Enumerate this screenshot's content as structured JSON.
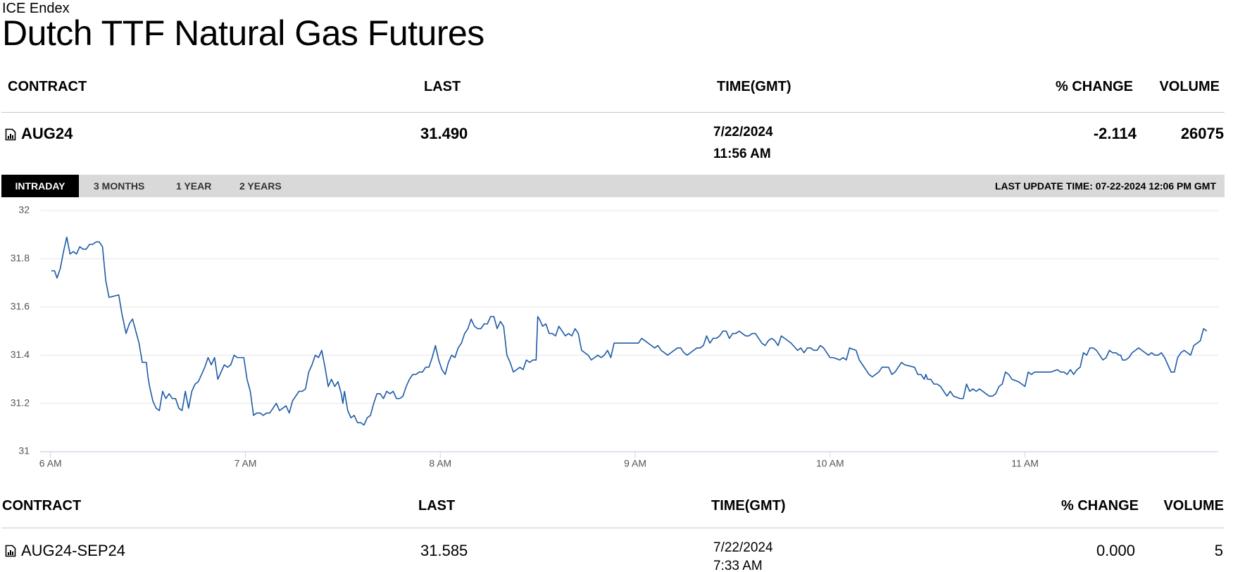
{
  "header": {
    "source": "ICE Endex",
    "title": "Dutch TTF Natural Gas Futures"
  },
  "table": {
    "columns": [
      "CONTRACT",
      "LAST",
      "TIME(GMT)",
      "% CHANGE",
      "VOLUME"
    ],
    "rows": [
      {
        "contract": "AUG24",
        "last": "31.490",
        "date": "7/22/2024",
        "time": "11:56 AM",
        "change": "-2.114",
        "volume": "26075"
      }
    ]
  },
  "tabs": [
    "INTRADAY",
    "3 MONTHS",
    "1 YEAR",
    "2 YEARS"
  ],
  "last_update": "LAST UPDATE TIME: 07-22-2024 12:06 PM GMT",
  "chart_data": {
    "type": "line",
    "color": "#1d5aa6",
    "grid": true,
    "xlim": [
      356.8,
      719.5
    ],
    "ylim": [
      31,
      32
    ],
    "yticks": [
      31,
      31.2,
      31.4,
      31.6,
      31.8,
      32
    ],
    "xticks": [
      {
        "value": 360,
        "label": "6 AM"
      },
      {
        "value": 420,
        "label": "7 AM"
      },
      {
        "value": 480,
        "label": "8 AM"
      },
      {
        "value": 540,
        "label": "9 AM"
      },
      {
        "value": 600,
        "label": "10 AM"
      },
      {
        "value": 660,
        "label": "11 AM"
      }
    ],
    "x": [
      360.25,
      361.25,
      362,
      363,
      364,
      365,
      366,
      367,
      368,
      369,
      370,
      371,
      372,
      373,
      374,
      375,
      376,
      377,
      378,
      381,
      382,
      383.25,
      384.25,
      385.25,
      386.25,
      387.25,
      388.25,
      389.5,
      390,
      390.5,
      391.5,
      392.5,
      393.5,
      394.5,
      395.5,
      396.5,
      397.5,
      398.5,
      399.5,
      400.5,
      401.5,
      402.5,
      403.5,
      404.5,
      405.5,
      406.5,
      407.5,
      408.5,
      409.5,
      410.5,
      411.5,
      412.5,
      413.5,
      414.5,
      415.5,
      416.5,
      417.5,
      418.5,
      419.5,
      420.5,
      421.5,
      422.5,
      423.5,
      424.5,
      425.5,
      426.5,
      427.5,
      428.5,
      429.5,
      430.5,
      431.5,
      432.5,
      433.5,
      434.5,
      435.5,
      436.5,
      437.5,
      438.5,
      439.5,
      440.5,
      441.5,
      442.5,
      443.5,
      444.5,
      445.5,
      446.5,
      447.5,
      448.5,
      449.5,
      450,
      450.5,
      451.5,
      452.5,
      453.5,
      454.5,
      455.5,
      456.5,
      457.5,
      458.5,
      459.5,
      460.5,
      461.5,
      462.5,
      463.5,
      464.5,
      465.5,
      466.5,
      467.5,
      468.5,
      469.5,
      470.5,
      471.5,
      472.5,
      473.5,
      474.5,
      475.5,
      476.5,
      477.5,
      478.5,
      479.5,
      480.5,
      481.5,
      482.5,
      483.5,
      484.5,
      485.5,
      486.5,
      487.5,
      488.5,
      489.5,
      490.5,
      491.5,
      492.5,
      493.5,
      494.5,
      495.5,
      496.5,
      497.5,
      498.5,
      499.5,
      500.5,
      501.5,
      502.5,
      503.5,
      504.5,
      505.5,
      506.5,
      507.5,
      508.5,
      509.5,
      510,
      510.5,
      511.5,
      512.5,
      513.5,
      514.5,
      515.5,
      516.5,
      517.5,
      518.5,
      519.5,
      520.5,
      521.5,
      522.5,
      523.5,
      524.5,
      525.5,
      526.5,
      527.5,
      528.5,
      529.5,
      530.5,
      531.5,
      532.5,
      533.5,
      534.5,
      541,
      542,
      543,
      544,
      545,
      546,
      547,
      548,
      549,
      550,
      551,
      553,
      554,
      555,
      556,
      557,
      558,
      559,
      560,
      561,
      562,
      563,
      564,
      565,
      566,
      567,
      568,
      569,
      569.5,
      570,
      571,
      572,
      573,
      574,
      575,
      576,
      577,
      578,
      579,
      580,
      581,
      582,
      583,
      584,
      585,
      586,
      588,
      590,
      591,
      592,
      593,
      594,
      595,
      596,
      597,
      598,
      599,
      600,
      601,
      603,
      604,
      605,
      606,
      608,
      609,
      610,
      611,
      612,
      613,
      615,
      616,
      618,
      619,
      620,
      621,
      622,
      623,
      626,
      627,
      628,
      629,
      629.5,
      630,
      631,
      632,
      633,
      634,
      635,
      636,
      637,
      638,
      640,
      641,
      642,
      643,
      644,
      645,
      646,
      647,
      648,
      649,
      650,
      651,
      652,
      653,
      654,
      655,
      656,
      658,
      659,
      660,
      661,
      662,
      663,
      668,
      670,
      671,
      672,
      673,
      674,
      675,
      676,
      677,
      678,
      679,
      680,
      681,
      682,
      683,
      684,
      685,
      686,
      687,
      688,
      689,
      689.5,
      690,
      691,
      692,
      693,
      694,
      695,
      696,
      697,
      698,
      699,
      700,
      701,
      702,
      703,
      704,
      705,
      706,
      707,
      708,
      709,
      710,
      711,
      712,
      713,
      714,
      715,
      716
    ],
    "values": [
      31.75,
      31.75,
      31.72,
      31.76,
      31.83,
      31.89,
      31.82,
      31.83,
      31.82,
      31.85,
      31.84,
      31.84,
      31.86,
      31.86,
      31.87,
      31.87,
      31.85,
      31.71,
      31.64,
      31.65,
      31.57,
      31.49,
      31.53,
      31.55,
      31.5,
      31.45,
      31.37,
      31.37,
      31.31,
      31.27,
      31.21,
      31.18,
      31.17,
      31.25,
      31.22,
      31.24,
      31.22,
      31.22,
      31.18,
      31.17,
      31.25,
      31.18,
      31.25,
      31.28,
      31.29,
      31.32,
      31.35,
      31.39,
      31.36,
      31.39,
      31.3,
      31.33,
      31.36,
      31.35,
      31.36,
      31.4,
      31.39,
      31.39,
      31.39,
      31.3,
      31.25,
      31.15,
      31.16,
      31.16,
      31.15,
      31.16,
      31.16,
      31.18,
      31.2,
      31.17,
      31.18,
      31.19,
      31.16,
      31.21,
      31.23,
      31.25,
      31.25,
      31.26,
      31.33,
      31.36,
      31.4,
      31.39,
      31.42,
      31.35,
      31.27,
      31.3,
      31.27,
      31.29,
      31.24,
      31.2,
      31.25,
      31.17,
      31.14,
      31.15,
      31.12,
      31.12,
      31.11,
      31.14,
      31.15,
      31.2,
      31.24,
      31.24,
      31.22,
      31.25,
      31.24,
      31.25,
      31.22,
      31.22,
      31.23,
      31.27,
      31.3,
      31.32,
      31.32,
      31.33,
      31.33,
      31.35,
      31.35,
      31.39,
      31.44,
      31.38,
      31.34,
      31.32,
      31.37,
      31.4,
      31.39,
      31.43,
      31.45,
      31.49,
      31.51,
      31.55,
      31.52,
      31.51,
      31.51,
      31.53,
      31.53,
      31.56,
      31.56,
      31.51,
      31.54,
      31.52,
      31.4,
      31.37,
      31.33,
      31.34,
      31.35,
      31.34,
      31.38,
      31.37,
      31.38,
      31.38,
      31.56,
      31.55,
      31.52,
      31.53,
      31.49,
      31.49,
      31.48,
      31.52,
      31.5,
      31.48,
      31.49,
      31.48,
      31.51,
      31.49,
      31.42,
      31.41,
      31.4,
      31.38,
      31.39,
      31.4,
      31.39,
      31.4,
      31.42,
      31.39,
      31.45,
      31.45,
      31.45,
      31.47,
      31.46,
      31.45,
      31.44,
      31.43,
      31.44,
      31.42,
      31.41,
      31.4,
      31.41,
      31.43,
      31.43,
      31.41,
      31.4,
      31.41,
      31.42,
      31.43,
      31.43,
      31.44,
      31.48,
      31.45,
      31.47,
      31.47,
      31.48,
      31.5,
      31.5,
      31.47,
      31.48,
      31.49,
      31.49,
      31.5,
      31.49,
      31.48,
      31.48,
      31.49,
      31.49,
      31.47,
      31.45,
      31.44,
      31.46,
      31.47,
      31.46,
      31.44,
      31.48,
      31.47,
      31.45,
      31.42,
      31.43,
      31.41,
      31.43,
      31.43,
      31.42,
      31.42,
      31.44,
      31.43,
      31.41,
      31.39,
      31.39,
      31.38,
      31.39,
      31.38,
      31.43,
      31.42,
      31.38,
      31.36,
      31.34,
      31.32,
      31.31,
      31.33,
      31.35,
      31.35,
      31.32,
      31.33,
      31.35,
      31.37,
      31.36,
      31.35,
      31.32,
      31.32,
      31.3,
      31.32,
      31.3,
      31.3,
      31.28,
      31.28,
      31.27,
      31.25,
      31.23,
      31.25,
      31.23,
      31.22,
      31.22,
      31.28,
      31.25,
      31.26,
      31.25,
      31.26,
      31.25,
      31.24,
      31.23,
      31.23,
      31.24,
      31.27,
      31.28,
      31.33,
      31.32,
      31.3,
      31.29,
      31.28,
      31.27,
      31.33,
      31.32,
      31.33,
      31.33,
      31.34,
      31.33,
      31.33,
      31.32,
      31.34,
      31.32,
      31.34,
      31.35,
      31.41,
      31.4,
      31.43,
      31.43,
      31.42,
      31.4,
      31.38,
      31.39,
      31.42,
      31.41,
      31.41,
      31.4,
      31.4,
      31.38,
      31.38,
      31.39,
      31.41,
      31.42,
      31.43,
      31.42,
      31.41,
      31.4,
      31.41,
      31.4,
      31.4,
      31.41,
      31.39,
      31.36,
      31.33,
      31.33,
      31.39,
      31.41,
      31.42,
      31.41,
      31.4,
      31.44,
      31.45,
      31.46,
      31.51,
      31.5
    ]
  },
  "table2": {
    "columns": [
      "CONTRACT",
      "LAST",
      "TIME(GMT)",
      "% CHANGE",
      "VOLUME"
    ],
    "rows": [
      {
        "contract": "AUG24-SEP24",
        "last": "31.585",
        "date": "7/22/2024",
        "time": "7:33 AM",
        "change": "0.000",
        "volume": "5"
      }
    ]
  }
}
